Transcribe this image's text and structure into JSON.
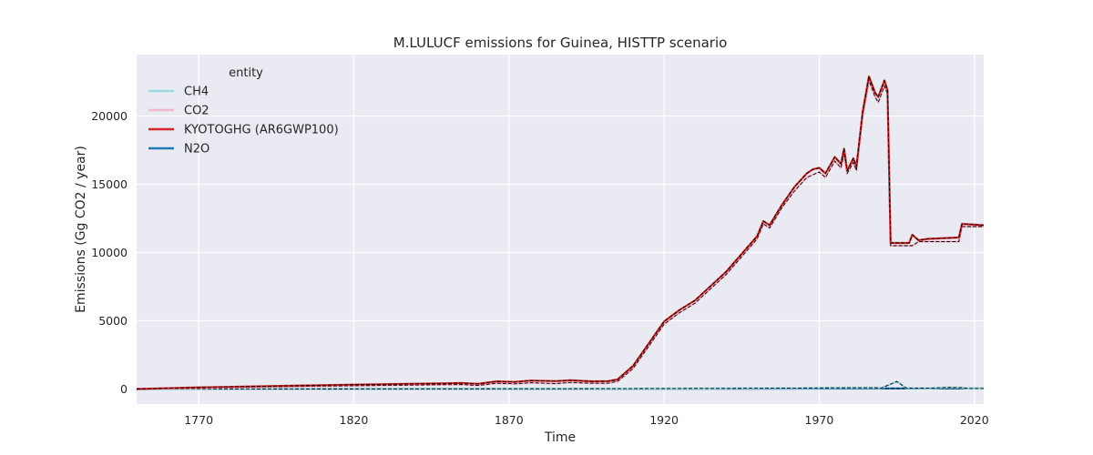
{
  "chart_data": {
    "type": "line",
    "title": "M.LULUCF emissions for Guinea, HISTTP scenario",
    "xlabel": "Time",
    "ylabel": "Emissions (Gg CO2 / year)",
    "xlim": [
      1750,
      2023
    ],
    "ylim": [
      -1100,
      24500
    ],
    "xticks": [
      1770,
      1820,
      1870,
      1920,
      1970,
      2020
    ],
    "yticks": [
      0,
      5000,
      10000,
      15000,
      20000
    ],
    "grid": true,
    "legend": {
      "title": "entity",
      "placement": "top-left"
    },
    "series": [
      {
        "name": "CH4",
        "color": "#9ed9e6",
        "points": [
          [
            1750,
            0
          ],
          [
            1800,
            5
          ],
          [
            1850,
            15
          ],
          [
            1900,
            30
          ],
          [
            1950,
            55
          ],
          [
            1980,
            90
          ],
          [
            1988,
            95
          ],
          [
            1990,
            70
          ],
          [
            1995,
            550
          ],
          [
            1998,
            80
          ],
          [
            2005,
            60
          ],
          [
            2012,
            120
          ],
          [
            2016,
            100
          ],
          [
            2018,
            40
          ],
          [
            2023,
            40
          ]
        ]
      },
      {
        "name": "CO2",
        "color": "#f4b6cc",
        "points": [
          [
            1750,
            0
          ],
          [
            1770,
            80
          ],
          [
            1800,
            180
          ],
          [
            1820,
            240
          ],
          [
            1850,
            320
          ],
          [
            1855,
            330
          ],
          [
            1860,
            260
          ],
          [
            1866,
            420
          ],
          [
            1872,
            380
          ],
          [
            1877,
            460
          ],
          [
            1885,
            400
          ],
          [
            1890,
            480
          ],
          [
            1897,
            420
          ],
          [
            1902,
            430
          ],
          [
            1905,
            560
          ],
          [
            1910,
            1500
          ],
          [
            1920,
            4750
          ],
          [
            1925,
            5600
          ],
          [
            1930,
            6300
          ],
          [
            1940,
            8400
          ],
          [
            1950,
            11000
          ],
          [
            1952,
            12100
          ],
          [
            1954,
            11800
          ],
          [
            1958,
            13300
          ],
          [
            1962,
            14500
          ],
          [
            1966,
            15500
          ],
          [
            1968,
            15700
          ],
          [
            1970,
            15900
          ],
          [
            1972,
            15500
          ],
          [
            1975,
            16700
          ],
          [
            1977,
            16200
          ],
          [
            1978,
            17200
          ],
          [
            1979,
            15800
          ],
          [
            1981,
            16600
          ],
          [
            1982,
            16000
          ],
          [
            1984,
            20000
          ],
          [
            1986,
            22600
          ],
          [
            1988,
            21400
          ],
          [
            1989,
            21000
          ],
          [
            1991,
            22200
          ],
          [
            1992,
            21600
          ],
          [
            1993,
            10500
          ],
          [
            2000,
            10500
          ],
          [
            2002,
            10800
          ],
          [
            2015,
            10800
          ],
          [
            2016,
            11900
          ],
          [
            2023,
            11900
          ]
        ]
      },
      {
        "name": "KYOTOGHG (AR6GWP100)",
        "color": "#d62728",
        "points": [
          [
            1750,
            0
          ],
          [
            1770,
            120
          ],
          [
            1800,
            240
          ],
          [
            1820,
            320
          ],
          [
            1850,
            420
          ],
          [
            1855,
            440
          ],
          [
            1860,
            380
          ],
          [
            1866,
            560
          ],
          [
            1872,
            520
          ],
          [
            1877,
            620
          ],
          [
            1885,
            580
          ],
          [
            1890,
            640
          ],
          [
            1897,
            560
          ],
          [
            1902,
            580
          ],
          [
            1905,
            700
          ],
          [
            1910,
            1700
          ],
          [
            1920,
            4950
          ],
          [
            1925,
            5800
          ],
          [
            1930,
            6500
          ],
          [
            1940,
            8600
          ],
          [
            1950,
            11200
          ],
          [
            1952,
            12300
          ],
          [
            1954,
            12000
          ],
          [
            1958,
            13500
          ],
          [
            1962,
            14800
          ],
          [
            1966,
            15800
          ],
          [
            1968,
            16100
          ],
          [
            1970,
            16200
          ],
          [
            1972,
            15800
          ],
          [
            1975,
            17000
          ],
          [
            1977,
            16500
          ],
          [
            1978,
            17600
          ],
          [
            1979,
            16000
          ],
          [
            1981,
            16900
          ],
          [
            1982,
            16300
          ],
          [
            1984,
            20300
          ],
          [
            1986,
            22900
          ],
          [
            1988,
            21700
          ],
          [
            1989,
            21400
          ],
          [
            1991,
            22600
          ],
          [
            1992,
            21900
          ],
          [
            1993,
            10700
          ],
          [
            1999,
            10700
          ],
          [
            2000,
            11300
          ],
          [
            2002,
            10900
          ],
          [
            2005,
            11000
          ],
          [
            2015,
            11100
          ],
          [
            2016,
            12100
          ],
          [
            2023,
            12000
          ]
        ]
      },
      {
        "name": "N2O",
        "color": "#1f77b4",
        "points": [
          [
            1750,
            0
          ],
          [
            1800,
            3
          ],
          [
            1850,
            8
          ],
          [
            1900,
            15
          ],
          [
            1950,
            25
          ],
          [
            1990,
            40
          ],
          [
            2023,
            40
          ]
        ]
      }
    ]
  }
}
